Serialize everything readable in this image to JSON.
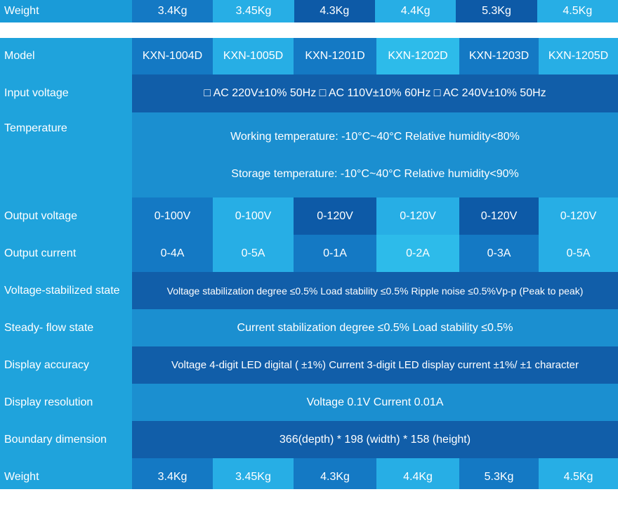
{
  "top_row": {
    "label": "Weight",
    "values": [
      "3.4Kg",
      "3.45Kg",
      "4.3Kg",
      "4.4Kg",
      "5.3Kg",
      "4.5Kg"
    ]
  },
  "table": {
    "model": {
      "label": "Model",
      "values": [
        "KXN-1004D",
        "KXN-1005D",
        "KXN-1201D",
        "KXN-1202D",
        "KXN-1203D",
        "KXN-1205D"
      ]
    },
    "input_voltage": {
      "label": "Input voltage",
      "value": "□ AC 220V±10% 50Hz □ AC 110V±10% 60Hz □ AC 240V±10% 50Hz"
    },
    "temperature": {
      "label": "Temperature",
      "working": "Working temperature: -10°C~40°C Relative humidity<80%",
      "storage": "Storage temperature: -10°C~40°C Relative humidity<90%"
    },
    "output_voltage": {
      "label": "Output voltage",
      "values": [
        "0-100V",
        "0-100V",
        "0-120V",
        "0-120V",
        "0-120V",
        "0-120V"
      ]
    },
    "output_current": {
      "label": "Output current",
      "values": [
        "0-4A",
        "0-5A",
        "0-1A",
        "0-2A",
        "0-3A",
        "0-5A"
      ]
    },
    "voltage_stabilized": {
      "label": "Voltage-stabilized state",
      "value": "Voltage stabilization degree ≤0.5%  Load stability ≤0.5%  Ripple noise ≤0.5%Vp-p (Peak to peak)"
    },
    "steady_flow": {
      "label": "Steady- flow state",
      "value": "Current stabilization degree ≤0.5%  Load stability ≤0.5%"
    },
    "display_accuracy": {
      "label": "Display accuracy",
      "value": "Voltage 4-digit LED digital ( ±1%) Current 3-digit LED display current ±1%/ ±1 character"
    },
    "display_resolution": {
      "label": "Display resolution",
      "value": "Voltage 0.1V  Current 0.01A"
    },
    "boundary_dimension": {
      "label": "Boundary dimension",
      "value": "366(depth) * 198 (width) * 158 (height)"
    },
    "weight": {
      "label": "Weight",
      "values": [
        "3.4Kg",
        "3.45Kg",
        "4.3Kg",
        "4.4Kg",
        "5.3Kg",
        "4.5Kg"
      ]
    }
  },
  "colors": {
    "dark": "#0d5aa7",
    "mid": "#1479c4",
    "light": "#27aee5",
    "label_bg": "#1fa3dc",
    "text": "#ffffff"
  }
}
